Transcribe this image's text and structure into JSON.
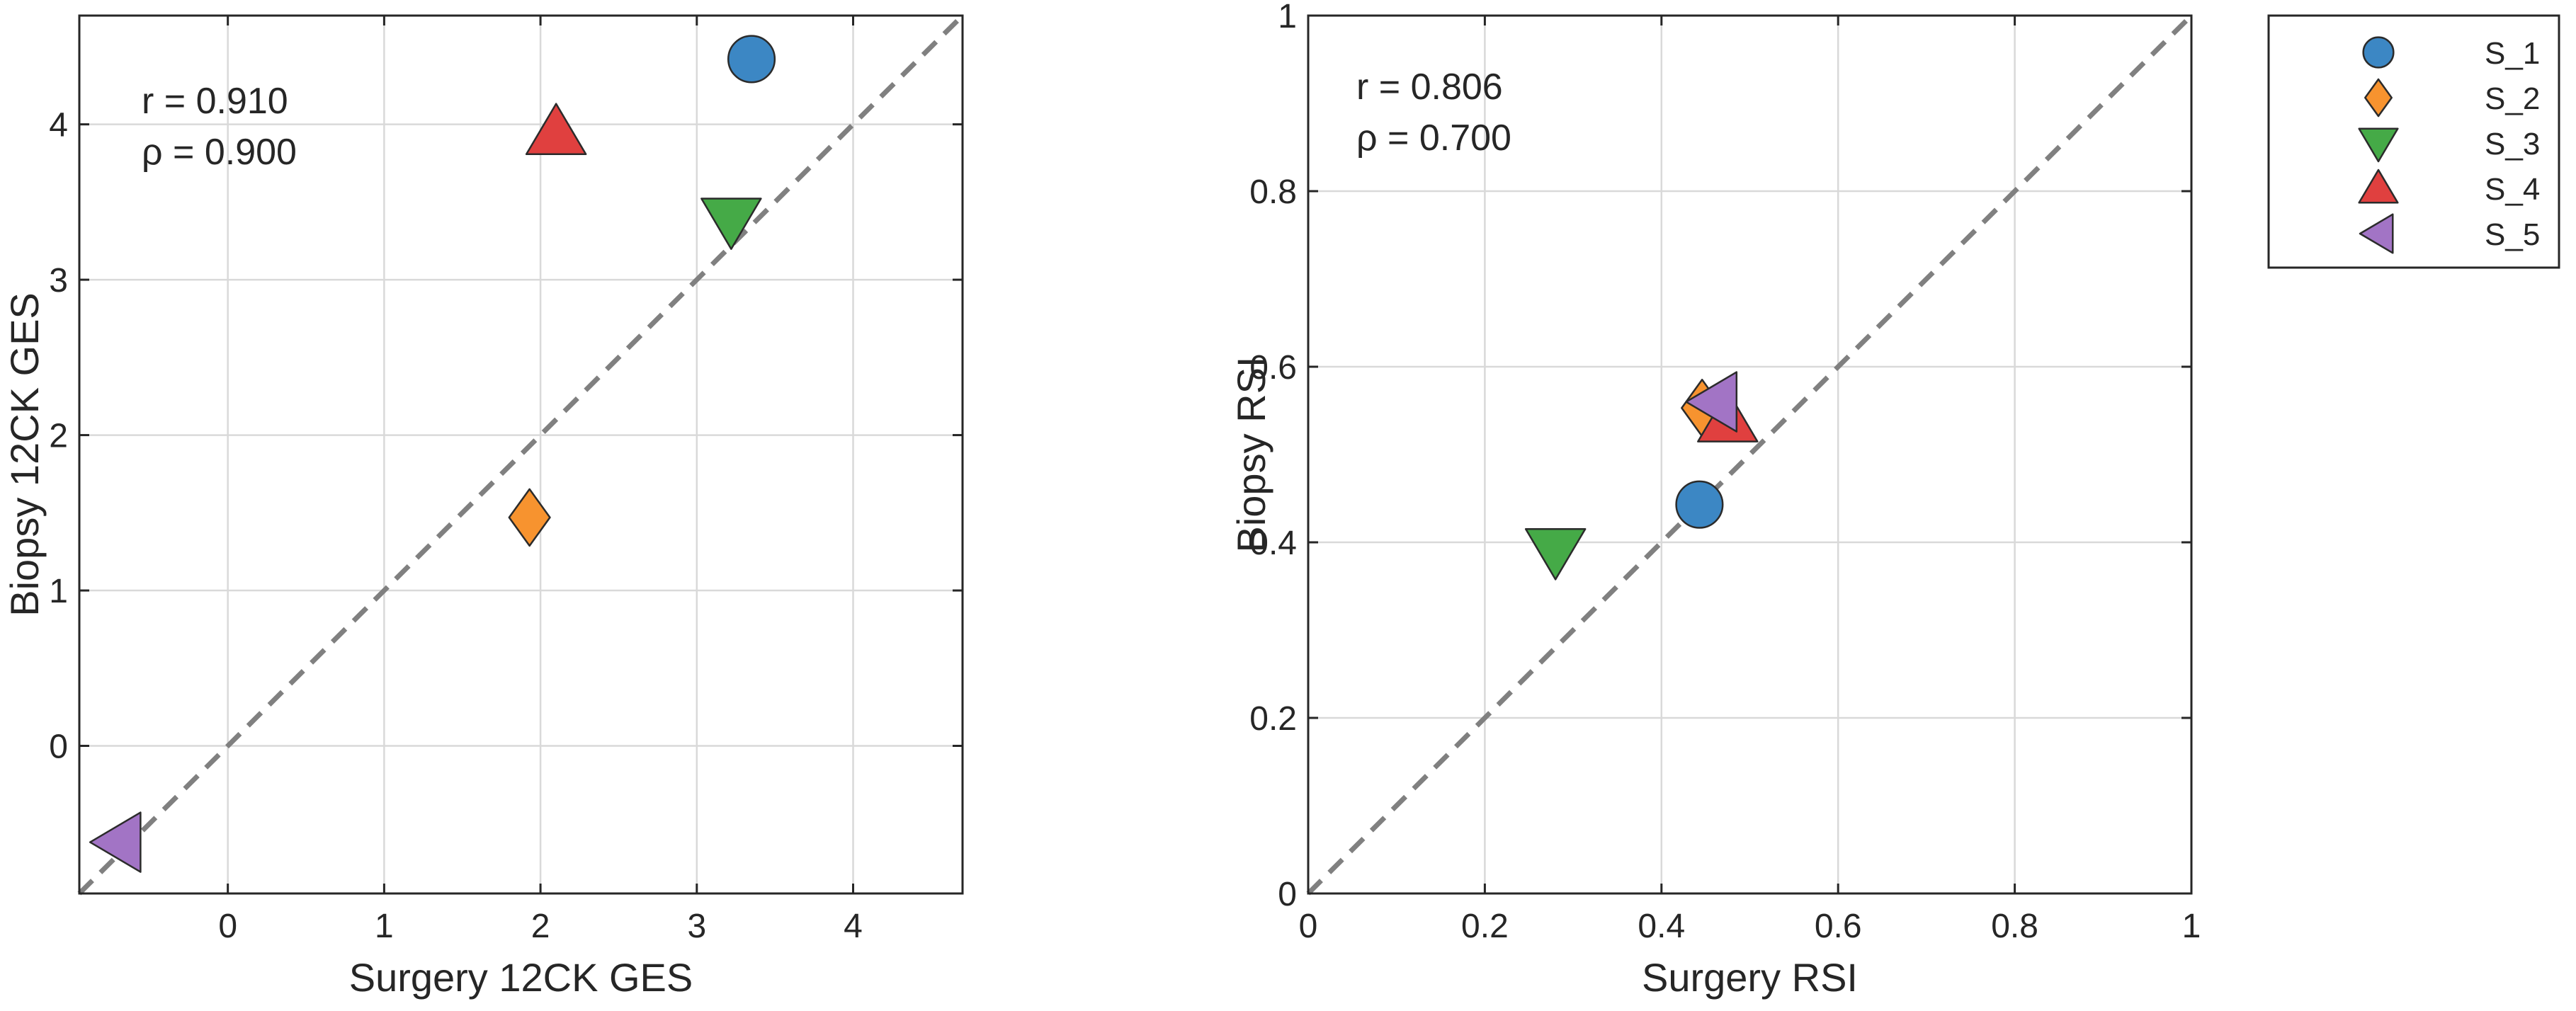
{
  "chart_data": [
    {
      "type": "scatter",
      "title": "",
      "xlabel": "Surgery 12CK GES",
      "ylabel": "Biopsy 12CK GES",
      "xlim": [
        -0.95,
        4.7
      ],
      "ylim": [
        -0.95,
        4.7
      ],
      "xticks": [
        0,
        1,
        2,
        3,
        4
      ],
      "yticks": [
        0,
        1,
        2,
        3,
        4
      ],
      "xtick_labels": [
        "0",
        "1",
        "2",
        "3",
        "4"
      ],
      "ytick_labels": [
        "0",
        "1",
        "2",
        "3",
        "4"
      ],
      "grid": true,
      "identity_line": true,
      "annotations": [
        "r = 0.910",
        "ρ = 0.900"
      ],
      "series": [
        {
          "name": "S_1",
          "marker": "circle",
          "color": "#3C87C4",
          "x": 3.35,
          "y": 4.42
        },
        {
          "name": "S_2",
          "marker": "diamond",
          "color": "#F7932F",
          "x": 1.93,
          "y": 1.47
        },
        {
          "name": "S_3",
          "marker": "triangle-down",
          "color": "#45AA47",
          "x": 3.22,
          "y": 3.38
        },
        {
          "name": "S_4",
          "marker": "triangle-up",
          "color": "#E0403F",
          "x": 2.1,
          "y": 3.95
        },
        {
          "name": "S_5",
          "marker": "triangle-left",
          "color": "#A274C5",
          "x": -0.7,
          "y": -0.62
        }
      ]
    },
    {
      "type": "scatter",
      "title": "",
      "xlabel": "Surgery RSI",
      "ylabel": "Biopsy RSI",
      "xlim": [
        0,
        1
      ],
      "ylim": [
        0,
        1
      ],
      "xticks": [
        0,
        0.2,
        0.4,
        0.6,
        0.8,
        1
      ],
      "yticks": [
        0,
        0.2,
        0.4,
        0.6,
        0.8,
        1
      ],
      "xtick_labels": [
        "0",
        "0.2",
        "0.4",
        "0.6",
        "0.8",
        "1"
      ],
      "ytick_labels": [
        "0",
        "0.2",
        "0.4",
        "0.6",
        "0.8",
        "1"
      ],
      "grid": true,
      "identity_line": true,
      "annotations": [
        "r = 0.806",
        "ρ = 0.700"
      ],
      "series": [
        {
          "name": "S_1",
          "marker": "circle",
          "color": "#3C87C4",
          "x": 0.443,
          "y": 0.443
        },
        {
          "name": "S_2",
          "marker": "diamond",
          "color": "#F7932F",
          "x": 0.446,
          "y": 0.553
        },
        {
          "name": "S_3",
          "marker": "triangle-down",
          "color": "#45AA47",
          "x": 0.28,
          "y": 0.39
        },
        {
          "name": "S_4",
          "marker": "triangle-up",
          "color": "#E0403F",
          "x": 0.475,
          "y": 0.54
        },
        {
          "name": "S_5",
          "marker": "triangle-left",
          "color": "#A274C5",
          "x": 0.46,
          "y": 0.56
        }
      ]
    }
  ],
  "legend": {
    "placement": "outside-right-top",
    "entries": [
      {
        "label": "S_1",
        "marker": "circle",
        "color": "#3C87C4"
      },
      {
        "label": "S_2",
        "marker": "diamond",
        "color": "#F7932F"
      },
      {
        "label": "S_3",
        "marker": "triangle-down",
        "color": "#45AA47"
      },
      {
        "label": "S_4",
        "marker": "triangle-up",
        "color": "#E0403F"
      },
      {
        "label": "S_5",
        "marker": "triangle-left",
        "color": "#A274C5"
      }
    ]
  },
  "style": {
    "grid_color": "#D9D9D9",
    "axis_color": "#262626",
    "identity_line_color": "#808080",
    "marker_edge_color": "#2B2B2B"
  }
}
